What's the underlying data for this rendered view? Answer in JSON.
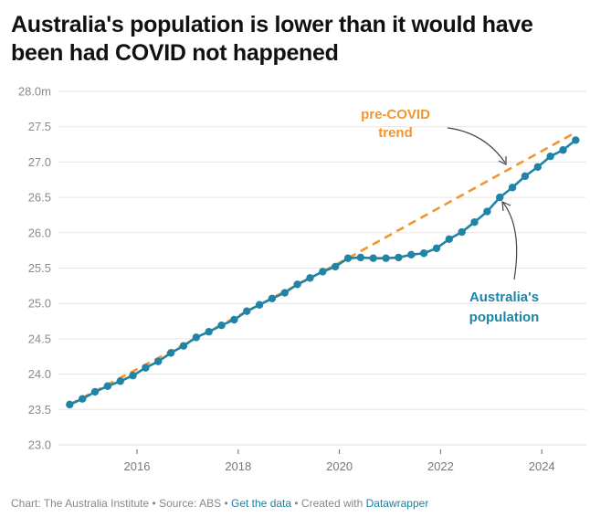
{
  "title": "Australia's population is lower than it would have been had COVID not happened",
  "footer": {
    "chart_credit": "Chart: The Australia Institute",
    "sep1": " • ",
    "source": "Source: ABS",
    "sep2": " • ",
    "get_data": "Get the data",
    "sep3": " • ",
    "created_with": "Created with ",
    "tool": "Datawrapper"
  },
  "colors": {
    "population": "#1f84a6",
    "trend": "#f2952d",
    "grid": "#e6e6e6",
    "link": "#1d81a2",
    "arrow": "#444444"
  },
  "chart_data": {
    "type": "line",
    "title": "Australia's population is lower than it would have been had COVID not happened",
    "xlabel": "",
    "ylabel": "",
    "y_unit_suffix": "m",
    "ylim": [
      23.0,
      28.0
    ],
    "yticks": [
      23.0,
      23.5,
      24.0,
      24.5,
      25.0,
      25.5,
      26.0,
      26.5,
      27.0,
      27.5,
      28.0
    ],
    "ytick_labels": [
      "23.0",
      "23.5",
      "24.0",
      "24.5",
      "25.0",
      "25.5",
      "26.0",
      "26.5",
      "27.0",
      "27.5",
      "28.0m"
    ],
    "xlim": [
      2014.6,
      2024.95
    ],
    "xticks": [
      2016,
      2018,
      2020,
      2022,
      2024
    ],
    "xtick_labels": [
      "2016",
      "2018",
      "2020",
      "2022",
      "2024"
    ],
    "grid": true,
    "legend": "none (direct labels)",
    "series": [
      {
        "name": "Australia's population",
        "style": "line-with-markers",
        "x": [
          2014.67,
          2014.92,
          2015.17,
          2015.42,
          2015.67,
          2015.92,
          2016.17,
          2016.42,
          2016.67,
          2016.92,
          2017.17,
          2017.42,
          2017.67,
          2017.92,
          2018.17,
          2018.42,
          2018.67,
          2018.92,
          2019.17,
          2019.42,
          2019.67,
          2019.92,
          2020.17,
          2020.42,
          2020.67,
          2020.92,
          2021.17,
          2021.42,
          2021.67,
          2021.92,
          2022.17,
          2022.42,
          2022.67,
          2022.92,
          2023.17,
          2023.42,
          2023.67,
          2023.92,
          2024.17,
          2024.42,
          2024.67
        ],
        "values": [
          23.57,
          23.65,
          23.75,
          23.83,
          23.9,
          23.98,
          24.09,
          24.18,
          24.3,
          24.4,
          24.52,
          24.6,
          24.69,
          24.77,
          24.89,
          24.98,
          25.07,
          25.15,
          25.27,
          25.36,
          25.45,
          25.52,
          25.64,
          25.65,
          25.64,
          25.64,
          25.65,
          25.69,
          25.71,
          25.78,
          25.91,
          26.01,
          26.15,
          26.3,
          26.5,
          26.64,
          26.8,
          26.93,
          27.08,
          27.17,
          27.31
        ]
      },
      {
        "name": "pre-COVID trend",
        "style": "dashed",
        "x": [
          2014.67,
          2020.17,
          2024.67
        ],
        "values": [
          23.57,
          25.64,
          27.42
        ]
      }
    ],
    "annotations": [
      {
        "text_lines": [
          "pre-COVID",
          "trend"
        ],
        "color_key": "trend",
        "points_to_series": "pre-COVID trend",
        "points_to_x": 2023.3
      },
      {
        "text_lines": [
          "Australia's",
          "population"
        ],
        "color_key": "population",
        "points_to_series": "Australia's population",
        "points_to_x": 2023.2
      }
    ]
  }
}
